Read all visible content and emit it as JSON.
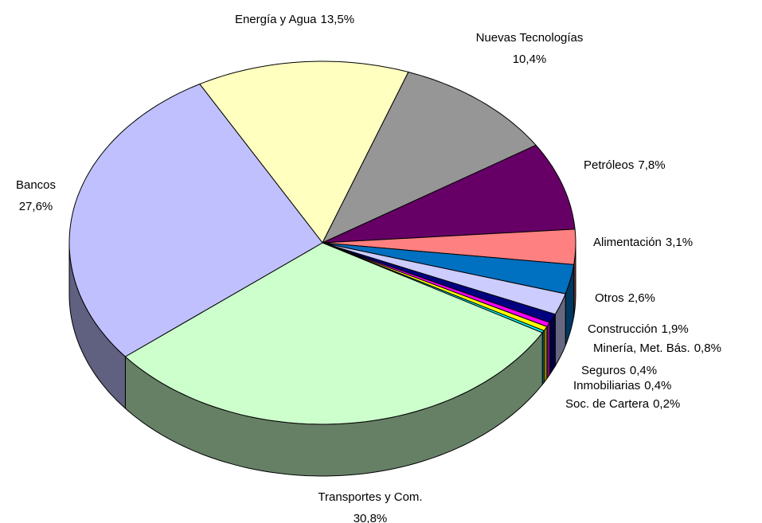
{
  "chart_data": {
    "type": "pie",
    "categories": [
      "Energía y Agua",
      "Nuevas Tecnologías",
      "Petróleos",
      "Alimentación",
      "Otros",
      "Construcción",
      "Minería, Met. Bás.",
      "Seguros",
      "Inmobiliarias",
      "Soc. de Cartera",
      "Transportes y Com.",
      "Bancos"
    ],
    "values": [
      13.5,
      10.4,
      7.8,
      3.1,
      2.6,
      1.9,
      0.8,
      0.4,
      0.4,
      0.2,
      30.8,
      27.6
    ],
    "value_labels": [
      "13,5%",
      "10,4%",
      "7,8%",
      "3,1%",
      "2,6%",
      "1,9%",
      "0,8%",
      "0,4%",
      "0,4%",
      "0,2%",
      "30,8%",
      "27,6%"
    ],
    "colors": [
      "#ffffc0",
      "#969696",
      "#660066",
      "#ff8080",
      "#0070c0",
      "#ccccff",
      "#000080",
      "#ff00ff",
      "#ffff00",
      "#00ffff",
      "#ccffcc",
      "#c0c0ff"
    ]
  }
}
